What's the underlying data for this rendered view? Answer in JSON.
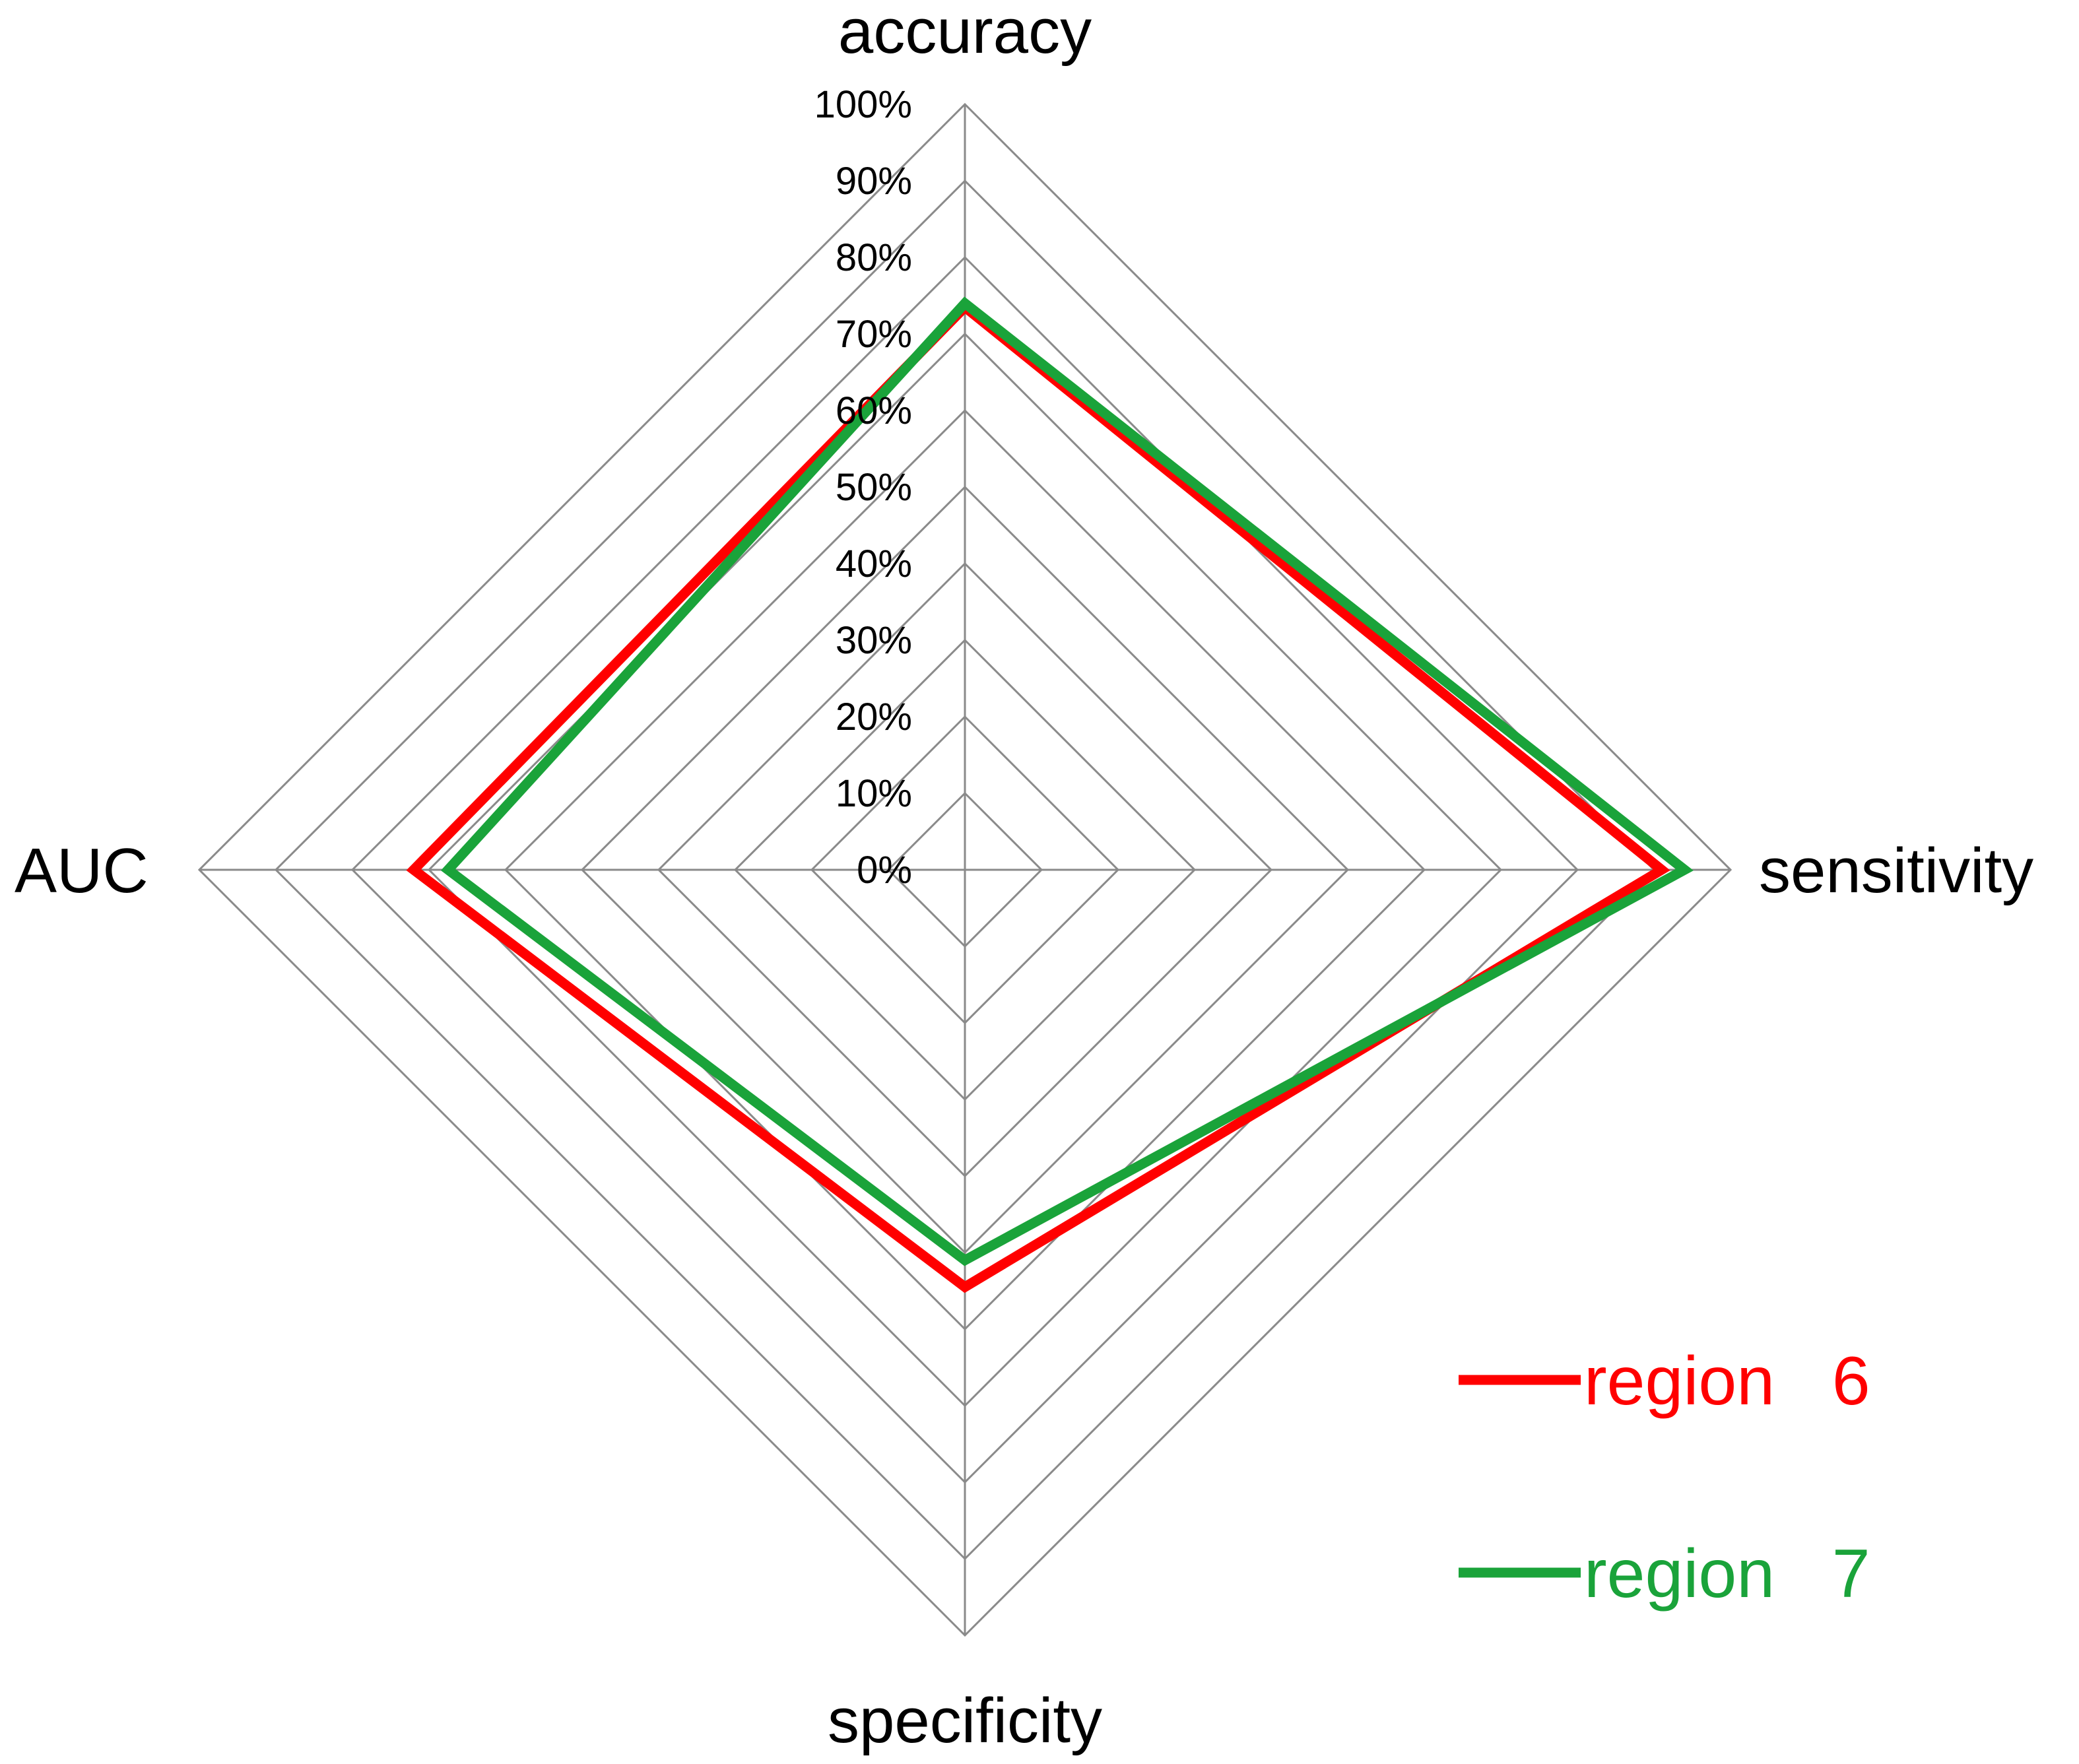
{
  "chart_data": {
    "type": "radar",
    "axes": [
      "accuracy",
      "sensitivity",
      "specificity",
      "AUC"
    ],
    "ticks": [
      "0%",
      "10%",
      "20%",
      "30%",
      "40%",
      "50%",
      "60%",
      "70%",
      "80%",
      "90%",
      "100%"
    ],
    "range": [
      0,
      100
    ],
    "grid": true,
    "legend_position": "bottom-right",
    "series": [
      {
        "name": "region   6",
        "color": "#ff0000",
        "values": [
          73.5,
          91.0,
          54.5,
          72.0
        ]
      },
      {
        "name": "region   7",
        "color": "#1aa33a",
        "values": [
          74.0,
          94.0,
          51.0,
          67.5
        ]
      }
    ]
  }
}
